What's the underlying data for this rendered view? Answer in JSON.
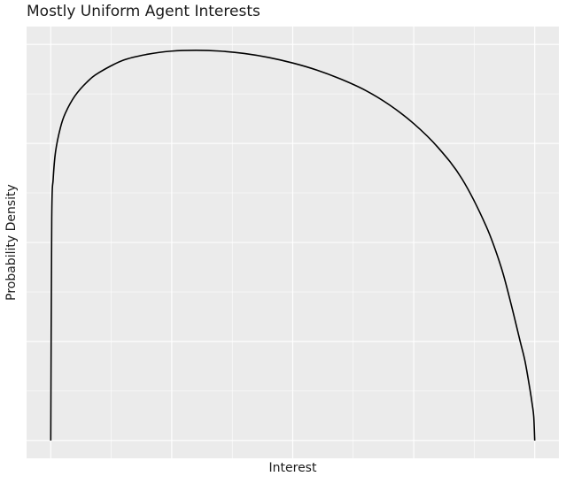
{
  "chart_data": {
    "type": "line",
    "title": "Mostly Uniform Agent Interests",
    "xlabel": "Interest",
    "ylabel": "Probability Density",
    "xlim": [
      -0.05,
      1.05
    ],
    "ylim": [
      -0.045,
      1.045
    ],
    "x_ticks_shown": false,
    "y_ticks_shown": false,
    "grid": true,
    "background": "#ebebeb",
    "grid_color": "#ffffff",
    "line_color": "#000000",
    "series": [
      {
        "x": [
          0,
          0.002,
          0.005,
          0.01,
          0.02,
          0.03,
          0.05,
          0.075,
          0.1,
          0.15,
          0.2,
          0.25,
          0.3,
          0.35,
          0.4,
          0.45,
          0.5,
          0.55,
          0.6,
          0.65,
          0.7,
          0.75,
          0.8,
          0.85,
          0.9,
          0.93,
          0.95,
          0.97,
          0.98,
          0.99,
          0.995,
          0.998,
          1
        ],
        "y": [
          0,
          0.56,
          0.66,
          0.73,
          0.79,
          0.826,
          0.87,
          0.905,
          0.929,
          0.96,
          0.975,
          0.983,
          0.985,
          0.983,
          0.977,
          0.967,
          0.953,
          0.935,
          0.912,
          0.884,
          0.847,
          0.8,
          0.74,
          0.66,
          0.54,
          0.44,
          0.35,
          0.25,
          0.2,
          0.13,
          0.09,
          0.06,
          0
        ]
      }
    ]
  }
}
